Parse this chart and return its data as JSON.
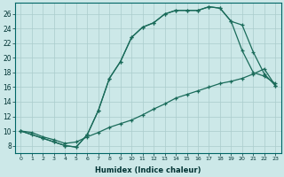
{
  "xlabel": "Humidex (Indice chaleur)",
  "xlim": [
    -0.5,
    23.5
  ],
  "ylim": [
    7,
    27.5
  ],
  "yticks": [
    8,
    10,
    12,
    14,
    16,
    18,
    20,
    22,
    24,
    26
  ],
  "xticks": [
    0,
    1,
    2,
    3,
    4,
    5,
    6,
    7,
    8,
    9,
    10,
    11,
    12,
    13,
    14,
    15,
    16,
    17,
    18,
    19,
    20,
    21,
    22,
    23
  ],
  "background_color": "#cce8e8",
  "grid_color": "#aacccc",
  "line_color": "#1a6b5a",
  "line1_x": [
    0,
    1,
    2,
    3,
    4,
    5,
    6,
    7,
    8,
    9,
    10,
    11,
    12,
    13,
    14,
    15,
    16,
    17,
    18,
    19,
    20,
    21,
    22,
    23
  ],
  "line1_y": [
    10,
    9.8,
    9.2,
    8.8,
    8.3,
    8.5,
    9.2,
    9.8,
    10.5,
    11.0,
    11.5,
    12.2,
    13.0,
    13.7,
    14.5,
    15.0,
    15.5,
    16.0,
    16.5,
    16.8,
    17.2,
    17.8,
    18.5,
    16.2
  ],
  "line2_x": [
    0,
    1,
    2,
    3,
    4,
    5,
    6,
    7,
    8,
    9,
    10,
    11,
    12,
    13,
    14,
    15,
    16,
    17,
    18,
    19,
    20,
    21,
    22,
    23
  ],
  "line2_y": [
    10,
    9.5,
    9.0,
    8.5,
    8.0,
    7.8,
    9.5,
    12.8,
    17.2,
    19.5,
    22.8,
    24.2,
    24.8,
    26.0,
    26.5,
    26.5,
    26.5,
    27.0,
    26.8,
    25.0,
    21.0,
    18.0,
    17.5,
    16.5
  ],
  "line3_x": [
    0,
    2,
    3,
    4,
    5,
    6,
    7,
    8,
    9,
    10,
    11,
    12,
    13,
    14,
    15,
    16,
    17,
    18,
    19,
    20,
    21,
    22,
    23
  ],
  "line3_y": [
    10,
    9.0,
    8.5,
    8.0,
    7.8,
    9.5,
    12.8,
    17.2,
    19.5,
    22.8,
    24.2,
    24.8,
    26.0,
    26.5,
    26.5,
    26.5,
    27.0,
    26.8,
    25.0,
    24.5,
    20.8,
    17.8,
    16.2
  ]
}
